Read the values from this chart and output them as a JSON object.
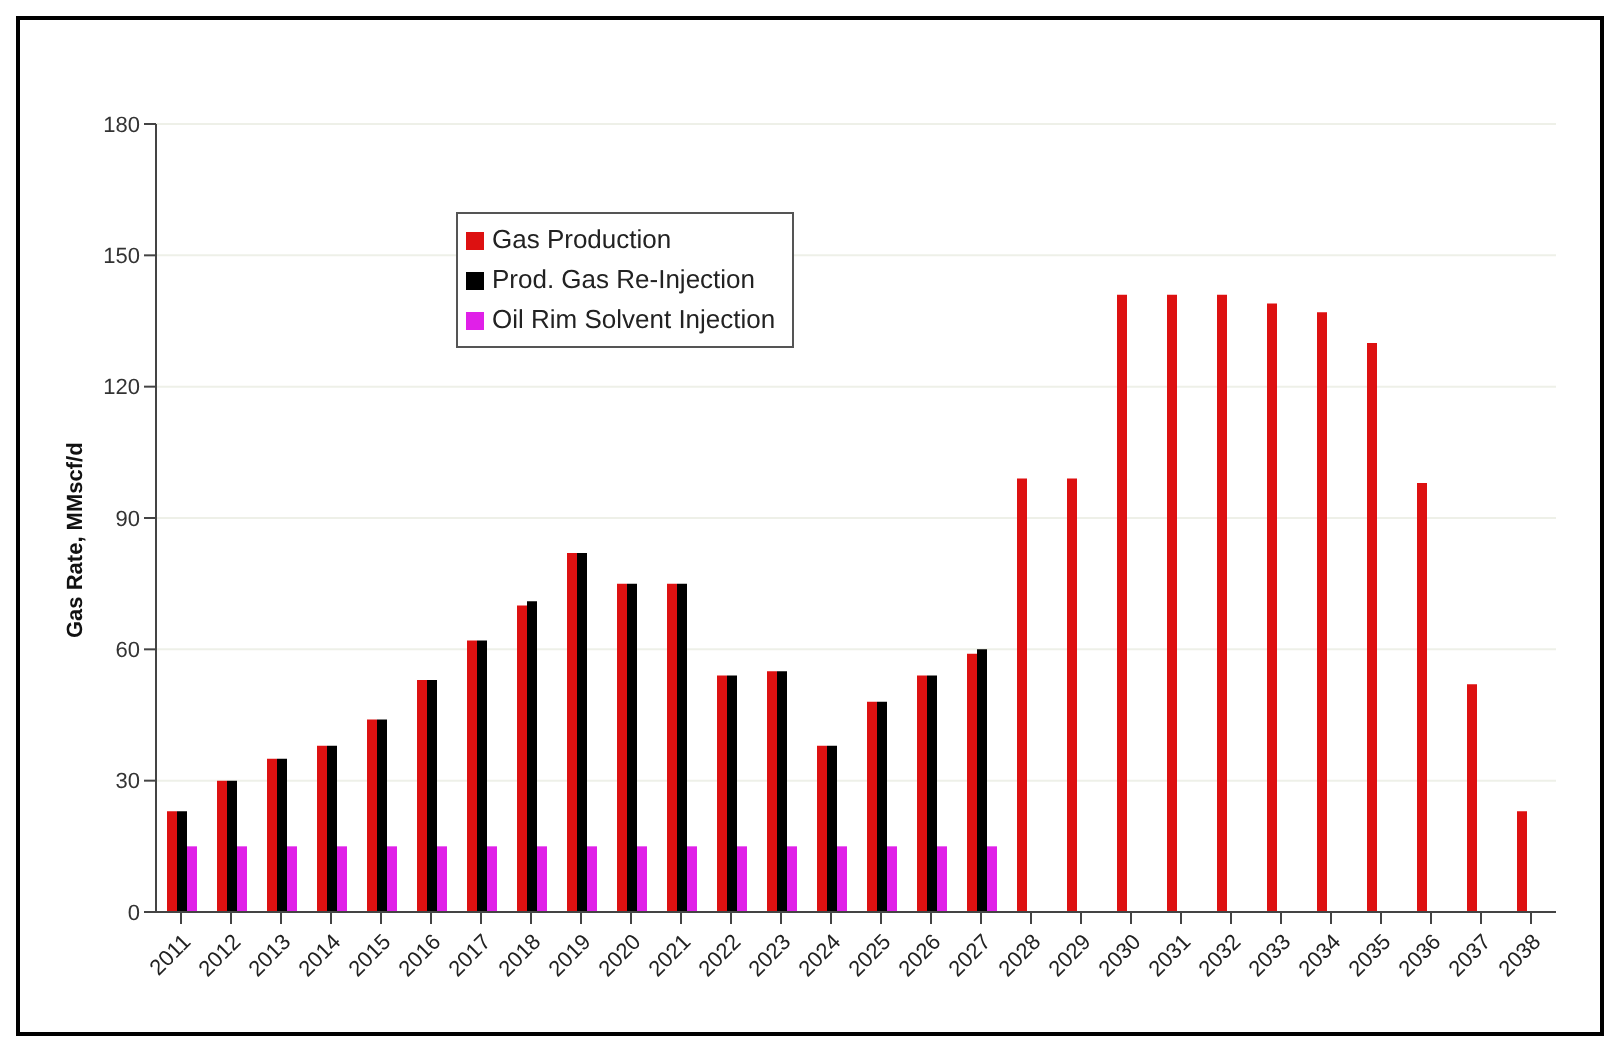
{
  "chart_data": {
    "type": "bar",
    "ylabel": "Gas Rate, MMscf/d",
    "categories": [
      "2011",
      "2012",
      "2013",
      "2014",
      "2015",
      "2016",
      "2017",
      "2018",
      "2019",
      "2020",
      "2021",
      "2022",
      "2023",
      "2024",
      "2025",
      "2026",
      "2027",
      "2028",
      "2029",
      "2030",
      "2031",
      "2032",
      "2033",
      "2034",
      "2035",
      "2036",
      "2037",
      "2038"
    ],
    "series": [
      {
        "name": "Gas Production",
        "color": "#dd1111",
        "values": [
          23,
          30,
          35,
          38,
          44,
          53,
          62,
          70,
          82,
          75,
          75,
          54,
          55,
          38,
          48,
          54,
          59,
          99,
          99,
          141,
          141,
          141,
          139,
          137,
          130,
          98,
          52,
          23
        ]
      },
      {
        "name": "Prod. Gas Re-Injection",
        "color": "#000000",
        "values": [
          23,
          30,
          35,
          38,
          44,
          53,
          62,
          71,
          82,
          75,
          75,
          54,
          55,
          38,
          48,
          54,
          60,
          null,
          null,
          null,
          null,
          null,
          null,
          null,
          null,
          null,
          null,
          null
        ]
      },
      {
        "name": "Oil Rim Solvent Injection",
        "color": "#e020e8",
        "values": [
          15,
          15,
          15,
          15,
          15,
          15,
          15,
          15,
          15,
          15,
          15,
          15,
          15,
          15,
          15,
          15,
          15,
          null,
          null,
          null,
          null,
          null,
          null,
          null,
          null,
          null,
          null,
          null
        ]
      }
    ],
    "ylim": [
      0,
      180
    ],
    "yticks": [
      0,
      30,
      60,
      90,
      120,
      150,
      180
    ],
    "grid": "y",
    "legend": "top left"
  }
}
